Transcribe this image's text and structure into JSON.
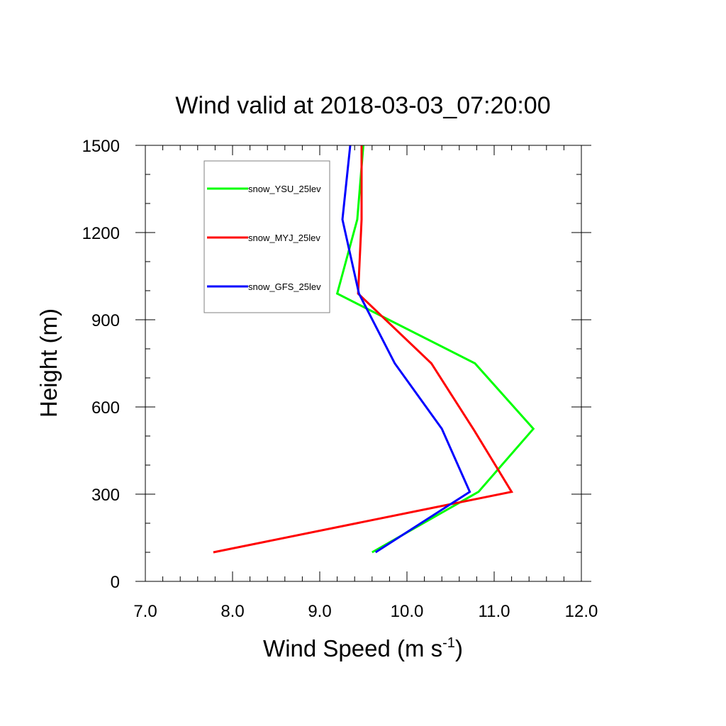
{
  "chart_data": {
    "type": "line",
    "title": "Wind valid at 2018-03-03_07:20:00",
    "xlabel": "Wind Speed (m s",
    "xlabel_sup": "-1",
    "xlabel_end": ")",
    "ylabel": "Height (m)",
    "xlim": [
      7.0,
      12.0
    ],
    "ylim": [
      0,
      1500
    ],
    "x_ticks": [
      7.0,
      8.0,
      9.0,
      10.0,
      11.0,
      12.0
    ],
    "x_tick_labels": [
      "7.0",
      "8.0",
      "9.0",
      "10.0",
      "11.0",
      "12.0"
    ],
    "y_ticks": [
      0,
      300,
      600,
      900,
      1200,
      1500
    ],
    "y_tick_labels": [
      "0",
      "300",
      "600",
      "900",
      "1200",
      "1500"
    ],
    "grid": false,
    "legend_position": "top-left",
    "series": [
      {
        "name": "snow_YSU_25lev",
        "color": "#00ff00",
        "points": [
          [
            9.6,
            100
          ],
          [
            10.82,
            308
          ],
          [
            11.45,
            525
          ],
          [
            10.78,
            750
          ],
          [
            9.2,
            990
          ],
          [
            9.43,
            1245
          ],
          [
            9.5,
            1500
          ]
        ]
      },
      {
        "name": "snow_MYJ_25lev",
        "color": "#ff0000",
        "points": [
          [
            7.78,
            100
          ],
          [
            11.2,
            308
          ],
          [
            10.77,
            520
          ],
          [
            10.28,
            750
          ],
          [
            9.44,
            990
          ],
          [
            9.48,
            1245
          ],
          [
            9.48,
            1500
          ]
        ]
      },
      {
        "name": "snow_GFS_25lev",
        "color": "#0000ff",
        "points": [
          [
            9.64,
            100
          ],
          [
            10.72,
            308
          ],
          [
            10.4,
            525
          ],
          [
            9.86,
            750
          ],
          [
            9.45,
            990
          ],
          [
            9.26,
            1245
          ],
          [
            9.35,
            1500
          ]
        ]
      }
    ]
  }
}
